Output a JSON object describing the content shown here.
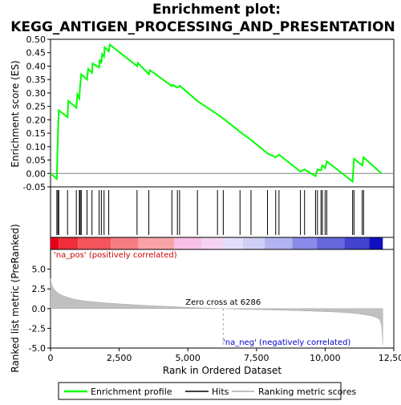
{
  "chart_data": [
    {
      "type": "line",
      "title": "Enrichment plot:\nKEGG_ANTIGEN_PROCESSING_AND_PRESENTATION",
      "title_lines": [
        "Enrichment plot:",
        "KEGG_ANTIGEN_PROCESSING_AND_PRESENTATION"
      ],
      "ylabel": "Enrichment score (ES)",
      "ylim": [
        -0.05,
        0.5
      ],
      "xlim": [
        0,
        12500
      ],
      "yticks": [
        -0.05,
        0.0,
        0.05,
        0.1,
        0.15,
        0.2,
        0.25,
        0.3,
        0.35,
        0.4,
        0.45,
        0.5
      ],
      "ytick_labels": [
        "-0.05",
        "0.00",
        "0.05",
        "0.10",
        "0.15",
        "0.20",
        "0.25",
        "0.30",
        "0.35",
        "0.40",
        "0.45",
        "0.50"
      ],
      "grid": false,
      "color": "#00ff00",
      "series": [
        {
          "name": "Enrichment profile",
          "x": [
            0,
            230,
            250,
            270,
            300,
            620,
            650,
            940,
            980,
            1050,
            1080,
            1120,
            1330,
            1370,
            1510,
            1530,
            1770,
            1790,
            1850,
            1880,
            1950,
            1970,
            2120,
            2160,
            3150,
            3180,
            3580,
            3620,
            4420,
            4450,
            4620,
            4700,
            5350,
            6080,
            6290,
            6900,
            7300,
            7900,
            8200,
            8320,
            9100,
            9250,
            9650,
            9720,
            9850,
            9900,
            10000,
            10060,
            11000,
            11050,
            11350,
            11400,
            12050
          ],
          "y": [
            0.0,
            -0.02,
            0.07,
            0.15,
            0.235,
            0.21,
            0.27,
            0.245,
            0.295,
            0.28,
            0.33,
            0.37,
            0.35,
            0.39,
            0.375,
            0.41,
            0.395,
            0.425,
            0.41,
            0.445,
            0.435,
            0.47,
            0.455,
            0.48,
            0.4,
            0.412,
            0.37,
            0.385,
            0.325,
            0.33,
            0.32,
            0.327,
            0.27,
            0.22,
            0.205,
            0.155,
            0.125,
            0.075,
            0.06,
            0.07,
            0.007,
            0.015,
            -0.01,
            0.015,
            0.012,
            0.03,
            0.02,
            0.045,
            -0.03,
            0.055,
            0.03,
            0.06,
            0.0
          ]
        }
      ]
    },
    {
      "type": "scatter",
      "title": "",
      "ylabel": "",
      "legend_name": "Hits",
      "hits": [
        230,
        270,
        300,
        620,
        940,
        1050,
        1080,
        1120,
        1330,
        1510,
        1770,
        1850,
        1950,
        2120,
        3150,
        3580,
        4420,
        4620,
        4700,
        5350,
        6080,
        6290,
        6900,
        7300,
        7900,
        8200,
        8320,
        9100,
        9250,
        9650,
        9720,
        9850,
        9900,
        10000,
        10060,
        11000,
        11050,
        11350,
        11400
      ]
    },
    {
      "type": "heatmap",
      "title": "",
      "label_pos": "'na_pos' (positively correlated)",
      "label_neg": "'na_neg' (negatively correlated)",
      "segments": [
        {
          "from": 0,
          "to": 300,
          "color": "#e8001a"
        },
        {
          "from": 300,
          "to": 1000,
          "color": "#ef2e3a"
        },
        {
          "from": 1000,
          "to": 2200,
          "color": "#f5545d"
        },
        {
          "from": 2200,
          "to": 3200,
          "color": "#f77d84"
        },
        {
          "from": 3200,
          "to": 4500,
          "color": "#f9a3a8"
        },
        {
          "from": 4500,
          "to": 5500,
          "color": "#f8c0e6"
        },
        {
          "from": 5500,
          "to": 6286,
          "color": "#f6d3f0"
        },
        {
          "from": 6286,
          "to": 7000,
          "color": "#e2defa"
        },
        {
          "from": 7000,
          "to": 7800,
          "color": "#cfcff6"
        },
        {
          "from": 7800,
          "to": 8800,
          "color": "#b3b3f1"
        },
        {
          "from": 8800,
          "to": 9700,
          "color": "#8a8ae9"
        },
        {
          "from": 9700,
          "to": 10700,
          "color": "#6767dc"
        },
        {
          "from": 10700,
          "to": 11600,
          "color": "#4343cf"
        },
        {
          "from": 11600,
          "to": 12100,
          "color": "#1010c0"
        }
      ]
    },
    {
      "type": "area",
      "title": "",
      "xlabel": "Rank in Ordered Dataset",
      "ylabel": "Ranked list metric (PreRanked)",
      "ylim": [
        -5.0,
        7.5
      ],
      "xlim": [
        0,
        12500
      ],
      "yticks": [
        -5.0,
        -2.5,
        0.0,
        2.5,
        5.0
      ],
      "ytick_labels": [
        "-5.0",
        "-2.5",
        "0.0",
        "2.5",
        "5.0"
      ],
      "xticks": [
        0,
        2500,
        5000,
        7500,
        10000,
        12500
      ],
      "xtick_labels": [
        "0",
        "2,500",
        "5,000",
        "7,500",
        "10,000",
        "12,500"
      ],
      "color": "#c0c0c0",
      "zero_cross_label": "Zero cross at 6286",
      "zero_cross": 6286,
      "series": [
        {
          "name": "Ranking metric scores",
          "x": [
            0,
            20,
            60,
            120,
            200,
            300,
            450,
            600,
            800,
            1000,
            1300,
            1600,
            2000,
            2500,
            3000,
            3500,
            4000,
            4500,
            5000,
            5500,
            6000,
            6286,
            6700,
            7200,
            7800,
            8400,
            9000,
            9500,
            10000,
            10500,
            10900,
            11200,
            11500,
            11700,
            11850,
            11950,
            12000,
            12030,
            12060,
            12080,
            12100
          ],
          "y": [
            3.8,
            3.4,
            2.9,
            2.5,
            2.2,
            1.9,
            1.65,
            1.45,
            1.25,
            1.1,
            0.95,
            0.85,
            0.72,
            0.6,
            0.5,
            0.4,
            0.32,
            0.24,
            0.16,
            0.09,
            0.03,
            0.0,
            -0.05,
            -0.1,
            -0.15,
            -0.2,
            -0.26,
            -0.32,
            -0.38,
            -0.45,
            -0.55,
            -0.65,
            -0.8,
            -0.95,
            -1.1,
            -1.3,
            -1.5,
            -1.8,
            -2.3,
            -3.2,
            -4.6
          ]
        }
      ]
    }
  ],
  "legend": {
    "items": [
      {
        "label": "Enrichment profile",
        "color": "#00ff00"
      },
      {
        "label": "Hits",
        "color": "#000000"
      },
      {
        "label": "Ranking metric scores",
        "color": "#c0c0c0"
      }
    ]
  }
}
